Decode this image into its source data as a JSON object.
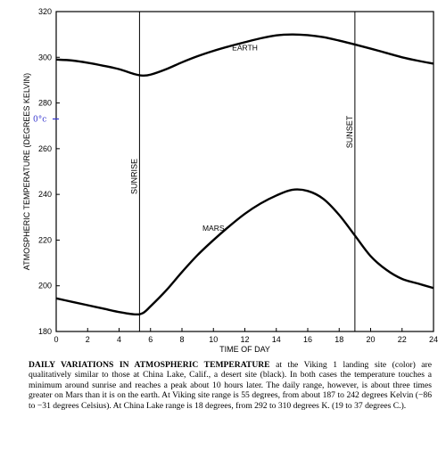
{
  "chart_data": {
    "type": "line",
    "xlabel": "TIME OF DAY",
    "ylabel": "ATMOSPHERIC TEMPERATURE (DEGREES KELVIN)",
    "xlim": [
      0,
      24
    ],
    "ylim": [
      180,
      320
    ],
    "x_ticks": [
      0,
      2,
      4,
      6,
      8,
      10,
      12,
      14,
      16,
      18,
      20,
      22,
      24
    ],
    "y_ticks": [
      180,
      200,
      220,
      240,
      260,
      280,
      300,
      320
    ],
    "grid": false,
    "series": [
      {
        "name": "EARTH",
        "color": "#000000",
        "x": [
          0,
          1,
          2,
          3,
          4,
          5,
          5.5,
          6,
          7,
          8,
          9,
          10,
          11,
          12,
          13,
          14,
          15,
          16,
          17,
          18,
          19,
          20,
          21,
          22,
          23,
          24
        ],
        "y": [
          299,
          298.6,
          297.6,
          296.3,
          294.8,
          292.6,
          292,
          292.4,
          294.8,
          297.8,
          300.5,
          302.8,
          304.8,
          306.6,
          308.3,
          309.6,
          310,
          309.7,
          308.8,
          307.3,
          305.6,
          303.8,
          301.9,
          300,
          298.5,
          297.2
        ]
      },
      {
        "name": "MARS",
        "color": "#000000",
        "x": [
          0,
          1,
          2,
          3,
          4,
          5,
          5.5,
          6,
          7,
          8,
          9,
          10,
          11,
          12,
          13,
          14,
          15,
          16,
          17,
          18,
          19,
          20,
          21,
          22,
          23,
          24
        ],
        "y": [
          194.5,
          193,
          191.5,
          190,
          188.5,
          187.5,
          188,
          191,
          198,
          206,
          213.5,
          220,
          226,
          231.5,
          236,
          239.5,
          242,
          241.5,
          238,
          231,
          222,
          213,
          207,
          203,
          201,
          199
        ]
      }
    ],
    "events": [
      {
        "label": "SUNRISE",
        "x": 5.3
      },
      {
        "label": "SUNSET",
        "x": 19
      }
    ],
    "annotations": [
      {
        "text": "0°c",
        "y": 273
      }
    ]
  },
  "caption": {
    "lead": "DAILY VARIATIONS IN ATMOSPHERIC TEMPERATURE",
    "text": " at the Viking 1 landing site (color) are qualitatively similar to those at China Lake, Calif., a desert site (black). In both cases the temperature touches a minimum around sunrise and reaches a peak about 10 hours later. The daily range, however, is about three times greater on Mars than it is on the earth. At Viking site range is 55 degrees, from about 187 to 242 degrees Kelvin (−86 to −31 degrees Celsius). At China Lake range is 18 degrees, from 292 to 310 degrees K. (19 to 37 degrees C.)."
  }
}
